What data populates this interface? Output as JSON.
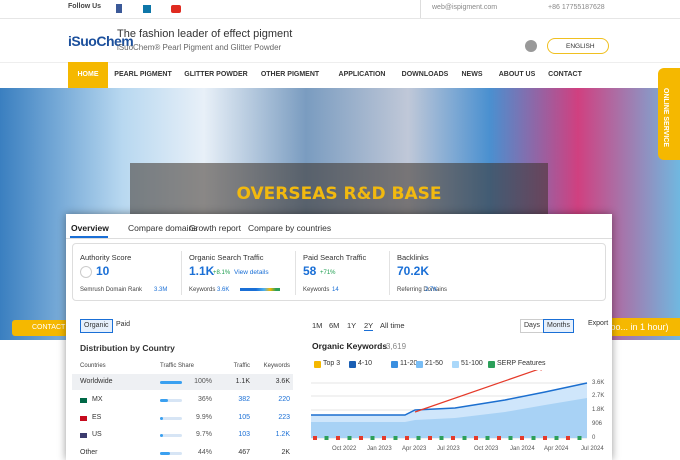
{
  "topbar": {
    "follow": "Follow Us",
    "email": "web@ispigment.com",
    "phone": "+86 17755187628"
  },
  "header": {
    "logo": "iSuoChem",
    "tagline": "The fashion leader of effect pigment",
    "subtitle": "iSuoChem® Pearl Pigment and Glitter Powder",
    "language": "ENGLISH"
  },
  "nav": [
    "HOME",
    "PEARL PIGMENT",
    "GLITTER POWDER",
    "OTHER PIGMENT",
    "APPLICATION",
    "DOWNLOADS",
    "NEWS",
    "ABOUT US",
    "CONTACT"
  ],
  "hero": {
    "title": "OVERSEAS R&D BASE",
    "online_service": "ONLINE SERVICE",
    "contact": "CONTACT",
    "expo": "Expo... in 1 hour)"
  },
  "panel": {
    "tabs": [
      "Overview",
      "Compare domains",
      "Growth report",
      "Compare by countries"
    ],
    "metrics": [
      {
        "label": "Authority Score",
        "value": "10",
        "sub_label": "Semrush Domain Rank",
        "sub_value": "3.3M"
      },
      {
        "label": "Organic Search Traffic",
        "value": "1.1K",
        "change": "+8.1%",
        "link": "View details",
        "sub_label": "Keywords",
        "sub_value": "3.6K"
      },
      {
        "label": "Paid Search Traffic",
        "value": "58",
        "change": "+71%",
        "sub_label": "Keywords",
        "sub_value": "14"
      },
      {
        "label": "Backlinks",
        "value": "70.2K",
        "sub_label": "Referring Domains",
        "sub_value": "2.7K"
      }
    ],
    "toggles": [
      "Organic",
      "Paid"
    ],
    "table": {
      "title": "Distribution by Country",
      "columns": [
        "Countries",
        "Traffic Share",
        "Traffic",
        "Keywords"
      ],
      "rows": [
        [
          "Worldwide",
          "100%",
          "1.1K",
          "3.6K"
        ],
        [
          "MX",
          "36%",
          "382",
          "220"
        ],
        [
          "ES",
          "9.9%",
          "105",
          "223"
        ],
        [
          "US",
          "9.7%",
          "103",
          "1.2K"
        ],
        [
          "Other",
          "44%",
          "467",
          "2K"
        ]
      ]
    },
    "periods": [
      "1M",
      "6M",
      "1Y",
      "2Y",
      "All time"
    ],
    "granularity": [
      "Days",
      "Months"
    ],
    "export": "Export",
    "chart": {
      "title": "Organic Keywords",
      "total": "3,619",
      "legend": [
        "Top 3",
        "4-10",
        "11-20",
        "21-50",
        "51-100",
        "SERP Features"
      ],
      "yticks": [
        "3.6K",
        "2.7K",
        "1.8K",
        "906",
        "0"
      ],
      "xticks": [
        "Oct 2022",
        "Jan 2023",
        "Apr 2023",
        "Jul 2023",
        "Oct 2023",
        "Jan 2024",
        "Apr 2024",
        "Jul 2024"
      ]
    }
  }
}
